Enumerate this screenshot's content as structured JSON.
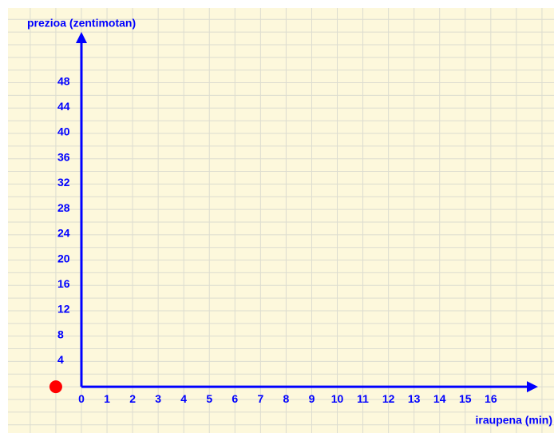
{
  "chart_data": {
    "type": "scatter",
    "title": "prezioa (zentimotan)",
    "x_label": "iraupena (min)",
    "x": [
      -1
    ],
    "values": [
      0
    ],
    "color": "#ff0000",
    "xlim": [
      -2.87,
      18.47
    ],
    "ylim": [
      -7.3,
      59.8
    ],
    "xticks": [
      0,
      1,
      2,
      3,
      4,
      5,
      6,
      7,
      8,
      9,
      10,
      11,
      12,
      13,
      14,
      15,
      16
    ],
    "yticks": [
      4,
      8,
      12,
      16,
      20,
      24,
      28,
      32,
      36,
      40,
      44,
      48
    ],
    "grid": true
  }
}
